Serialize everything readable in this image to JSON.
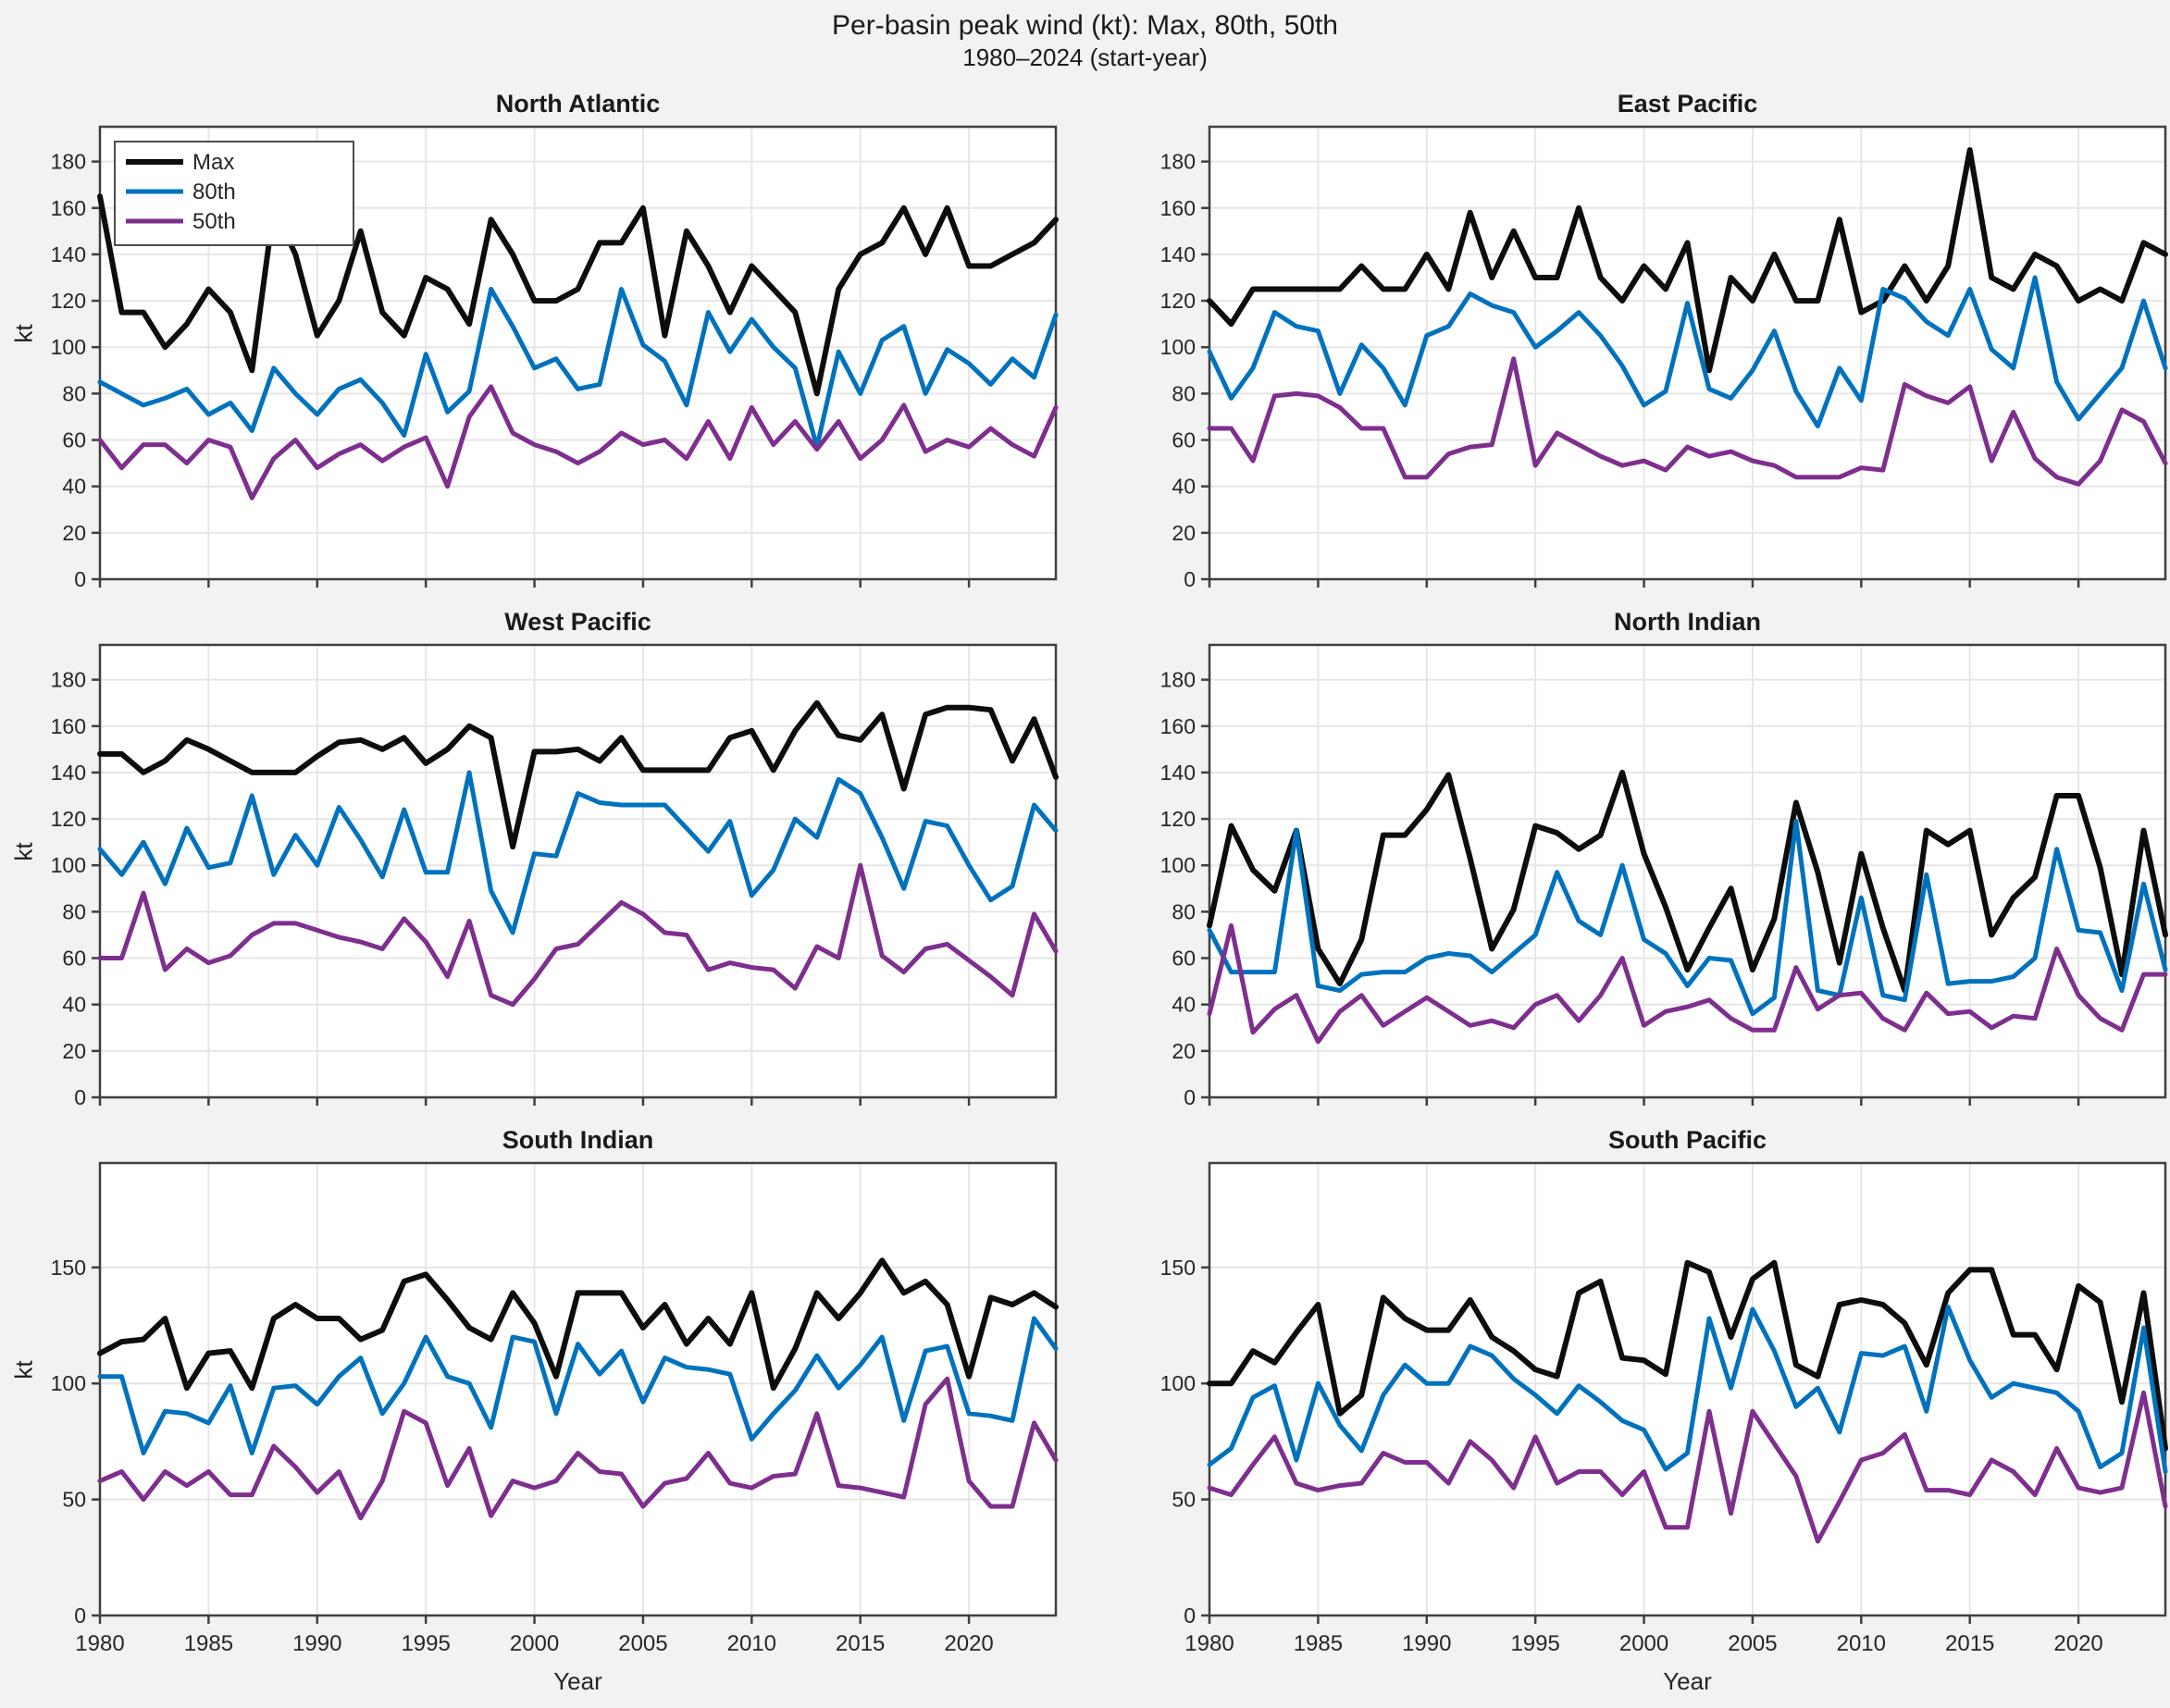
{
  "title": {
    "line1": "Per-basin peak wind (kt): Max, 80th, 50th",
    "line2": "1980–2024 (start-year)"
  },
  "labels": {
    "y_label": "kt",
    "x_label": "Year"
  },
  "legend": {
    "entries": [
      "Max",
      "80th",
      "50th"
    ],
    "position": "northwest-first-panel"
  },
  "colors": {
    "max": "#0d0d0d",
    "p80": "#0072BD",
    "p50": "#7E2F8E",
    "grid": "#e6e6e6",
    "axis": "#3f3f3f",
    "figure_bg": "#f2f2f2",
    "plot_bg": "#ffffff",
    "text": "#262626"
  },
  "chart_data": {
    "type": "line",
    "x_years": [
      1980,
      1981,
      1982,
      1983,
      1984,
      1985,
      1986,
      1987,
      1988,
      1989,
      1990,
      1991,
      1992,
      1993,
      1994,
      1995,
      1996,
      1997,
      1998,
      1999,
      2000,
      2001,
      2002,
      2003,
      2004,
      2005,
      2006,
      2007,
      2008,
      2009,
      2010,
      2011,
      2012,
      2013,
      2014,
      2015,
      2016,
      2017,
      2018,
      2019,
      2020,
      2021,
      2022,
      2023,
      2024
    ],
    "xticks": [
      1980,
      1985,
      1990,
      1995,
      2000,
      2005,
      2010,
      2015,
      2020
    ],
    "ylim": [
      0,
      195
    ],
    "yticks_top_rows": [
      0,
      20,
      40,
      60,
      80,
      100,
      120,
      140,
      160,
      180
    ],
    "yticks_bottom_row": [
      0,
      50,
      100,
      150
    ],
    "grid": true,
    "series_names": [
      "Max",
      "80th",
      "50th"
    ],
    "panels": [
      {
        "title": "North Atlantic",
        "max": [
          165,
          115,
          115,
          100,
          110,
          125,
          115,
          90,
          160,
          140,
          105,
          120,
          150,
          115,
          105,
          130,
          125,
          110,
          155,
          140,
          120,
          120,
          125,
          145,
          145,
          160,
          105,
          150,
          135,
          115,
          135,
          125,
          115,
          80,
          125,
          140,
          145,
          160,
          140,
          160,
          135,
          135,
          140,
          145,
          155
        ],
        "p80": [
          85,
          80,
          75,
          78,
          82,
          71,
          76,
          64,
          91,
          80,
          71,
          82,
          86,
          76,
          62,
          97,
          72,
          81,
          125,
          109,
          91,
          95,
          82,
          84,
          125,
          101,
          94,
          75,
          115,
          98,
          112,
          100,
          91,
          57,
          98,
          80,
          103,
          109,
          80,
          99,
          93,
          84,
          95,
          87,
          114
        ],
        "p50": [
          60,
          48,
          58,
          58,
          50,
          60,
          57,
          35,
          52,
          60,
          48,
          54,
          58,
          51,
          57,
          61,
          40,
          70,
          83,
          63,
          58,
          55,
          50,
          55,
          63,
          58,
          60,
          52,
          68,
          52,
          74,
          58,
          68,
          56,
          68,
          52,
          60,
          75,
          55,
          60,
          57,
          65,
          58,
          53,
          74
        ]
      },
      {
        "title": "East Pacific",
        "max": [
          120,
          110,
          125,
          125,
          125,
          125,
          125,
          135,
          125,
          125,
          140,
          125,
          158,
          130,
          150,
          130,
          130,
          160,
          130,
          120,
          135,
          125,
          145,
          90,
          130,
          120,
          140,
          120,
          120,
          155,
          115,
          120,
          135,
          120,
          135,
          185,
          130,
          125,
          140,
          135,
          120,
          125,
          120,
          145,
          140
        ],
        "p80": [
          98,
          78,
          91,
          115,
          109,
          107,
          80,
          101,
          91,
          75,
          105,
          109,
          123,
          118,
          115,
          100,
          107,
          115,
          105,
          92,
          75,
          81,
          119,
          82,
          78,
          90,
          107,
          81,
          66,
          91,
          77,
          125,
          121,
          111,
          105,
          125,
          99,
          91,
          130,
          85,
          69,
          80,
          91,
          120,
          91
        ],
        "p50": [
          65,
          65,
          51,
          79,
          80,
          79,
          74,
          65,
          65,
          44,
          44,
          54,
          57,
          58,
          95,
          49,
          63,
          58,
          53,
          49,
          51,
          47,
          57,
          53,
          55,
          51,
          49,
          44,
          44,
          44,
          48,
          47,
          84,
          79,
          76,
          83,
          51,
          72,
          52,
          44,
          41,
          51,
          73,
          68,
          50
        ]
      },
      {
        "title": "West Pacific",
        "max": [
          148,
          148,
          140,
          145,
          154,
          150,
          145,
          140,
          140,
          140,
          147,
          153,
          154,
          150,
          155,
          144,
          150,
          160,
          155,
          108,
          149,
          149,
          150,
          145,
          155,
          141,
          141,
          141,
          141,
          155,
          158,
          141,
          158,
          170,
          156,
          154,
          165,
          133,
          165,
          168,
          168,
          167,
          145,
          163,
          138
        ],
        "p80": [
          107,
          96,
          110,
          92,
          116,
          99,
          101,
          130,
          96,
          113,
          100,
          125,
          111,
          95,
          124,
          97,
          97,
          140,
          89,
          71,
          105,
          104,
          131,
          127,
          126,
          126,
          126,
          116,
          106,
          119,
          87,
          98,
          120,
          112,
          137,
          131,
          112,
          90,
          119,
          117,
          100,
          85,
          91,
          126,
          115
        ],
        "p50": [
          60,
          60,
          88,
          55,
          64,
          58,
          61,
          70,
          75,
          75,
          72,
          69,
          67,
          64,
          77,
          67,
          52,
          76,
          44,
          40,
          51,
          64,
          66,
          75,
          84,
          79,
          71,
          70,
          55,
          58,
          56,
          55,
          47,
          65,
          60,
          100,
          61,
          54,
          64,
          66,
          59,
          52,
          44,
          79,
          63
        ]
      },
      {
        "title": "North Indian",
        "max": [
          74,
          117,
          98,
          89,
          115,
          64,
          49,
          68,
          113,
          113,
          124,
          139,
          103,
          64,
          81,
          117,
          114,
          107,
          113,
          140,
          105,
          82,
          55,
          73,
          90,
          55,
          77,
          127,
          97,
          58,
          105,
          73,
          46,
          115,
          109,
          115,
          70,
          86,
          95,
          130,
          130,
          99,
          53,
          115,
          70
        ],
        "p80": [
          72,
          54,
          54,
          54,
          115,
          48,
          46,
          53,
          54,
          54,
          60,
          62,
          61,
          54,
          62,
          70,
          97,
          76,
          70,
          100,
          68,
          62,
          48,
          60,
          59,
          36,
          43,
          119,
          46,
          44,
          86,
          44,
          42,
          96,
          49,
          50,
          50,
          52,
          60,
          107,
          72,
          71,
          46,
          92,
          55
        ],
        "p50": [
          36,
          74,
          28,
          38,
          44,
          24,
          37,
          44,
          31,
          37,
          43,
          37,
          31,
          33,
          30,
          40,
          44,
          33,
          44,
          60,
          31,
          37,
          39,
          42,
          34,
          29,
          29,
          56,
          38,
          44,
          45,
          34,
          29,
          45,
          36,
          37,
          30,
          35,
          34,
          64,
          44,
          34,
          29,
          53,
          53
        ]
      },
      {
        "title": "South Indian",
        "max": [
          113,
          118,
          119,
          128,
          98,
          113,
          114,
          98,
          128,
          134,
          128,
          128,
          119,
          123,
          144,
          147,
          136,
          124,
          119,
          139,
          126,
          103,
          139,
          139,
          139,
          124,
          134,
          117,
          128,
          117,
          139,
          98,
          115,
          139,
          128,
          139,
          153,
          139,
          144,
          134,
          103,
          137,
          134,
          139,
          133
        ],
        "p80": [
          103,
          103,
          70,
          88,
          87,
          83,
          99,
          70,
          98,
          99,
          91,
          103,
          111,
          87,
          100,
          120,
          103,
          100,
          81,
          120,
          118,
          87,
          117,
          104,
          114,
          92,
          111,
          107,
          106,
          104,
          76,
          87,
          97,
          112,
          98,
          108,
          120,
          84,
          114,
          116,
          87,
          86,
          84,
          128,
          115
        ],
        "p50": [
          58,
          62,
          50,
          62,
          56,
          62,
          52,
          52,
          73,
          64,
          53,
          62,
          42,
          58,
          88,
          83,
          56,
          72,
          43,
          58,
          55,
          58,
          70,
          62,
          61,
          47,
          57,
          59,
          70,
          57,
          55,
          60,
          61,
          87,
          56,
          55,
          53,
          51,
          91,
          102,
          58,
          47,
          47,
          83,
          67
        ]
      },
      {
        "title": "South Pacific",
        "max": [
          100,
          100,
          114,
          109,
          122,
          134,
          87,
          95,
          137,
          128,
          123,
          123,
          136,
          120,
          114,
          106,
          103,
          139,
          144,
          111,
          110,
          104,
          152,
          148,
          120,
          145,
          152,
          108,
          103,
          134,
          136,
          134,
          126,
          108,
          139,
          149,
          149,
          121,
          121,
          106,
          142,
          135,
          92,
          139,
          72
        ],
        "p80": [
          65,
          72,
          94,
          99,
          67,
          100,
          82,
          71,
          95,
          108,
          100,
          100,
          116,
          112,
          102,
          95,
          87,
          99,
          92,
          84,
          80,
          63,
          70,
          128,
          98,
          132,
          114,
          90,
          98,
          79,
          113,
          112,
          116,
          88,
          133,
          110,
          94,
          100,
          98,
          96,
          88,
          64,
          70,
          124,
          62
        ],
        "p50": [
          55,
          52,
          65,
          77,
          57,
          54,
          56,
          57,
          70,
          66,
          66,
          57,
          75,
          67,
          55,
          77,
          57,
          62,
          62,
          52,
          62,
          38,
          38,
          88,
          44,
          88,
          74,
          60,
          32,
          49,
          67,
          70,
          78,
          54,
          54,
          52,
          67,
          62,
          52,
          72,
          55,
          53,
          55,
          96,
          47
        ]
      }
    ]
  }
}
